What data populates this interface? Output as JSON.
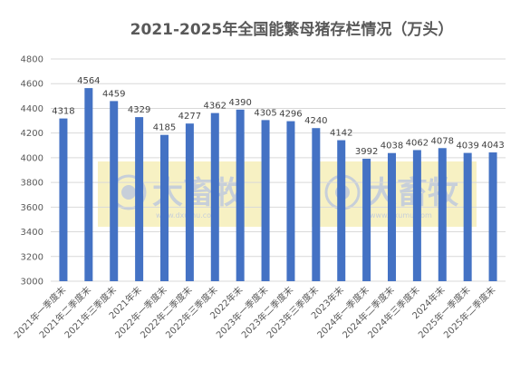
{
  "chart_data": {
    "type": "bar",
    "title": "2021-2025年全国能繁母猪存栏情况（万头）",
    "xlabel": "",
    "ylabel": "",
    "ylim": [
      3000,
      4800
    ],
    "yticks": [
      3000,
      3200,
      3400,
      3600,
      3800,
      4000,
      4200,
      4400,
      4600,
      4800
    ],
    "grid": true,
    "legend": "none",
    "categories": [
      "2021年一季度末",
      "2021年二季度末",
      "2021年三季度末",
      "2021年末",
      "2022年一季度末",
      "2022年二季度末",
      "2022年三季度末",
      "2022年末",
      "2023年一季度末",
      "2023年二季度末",
      "2023年三季度末",
      "2023年末",
      "2024年一季度末",
      "2024年二季度末",
      "2024年三季度末",
      "2024年末",
      "2025年一季度末",
      "2025年二季度末"
    ],
    "values": [
      4318,
      4564,
      4459,
      4329,
      4185,
      4277,
      4362,
      4390,
      4305,
      4296,
      4240,
      4142,
      3992,
      4038,
      4062,
      4078,
      4039,
      4043
    ],
    "bar_color": "#4472c4",
    "watermark": {
      "brand": "大畜牧",
      "url": "www.dxumu.com"
    }
  }
}
